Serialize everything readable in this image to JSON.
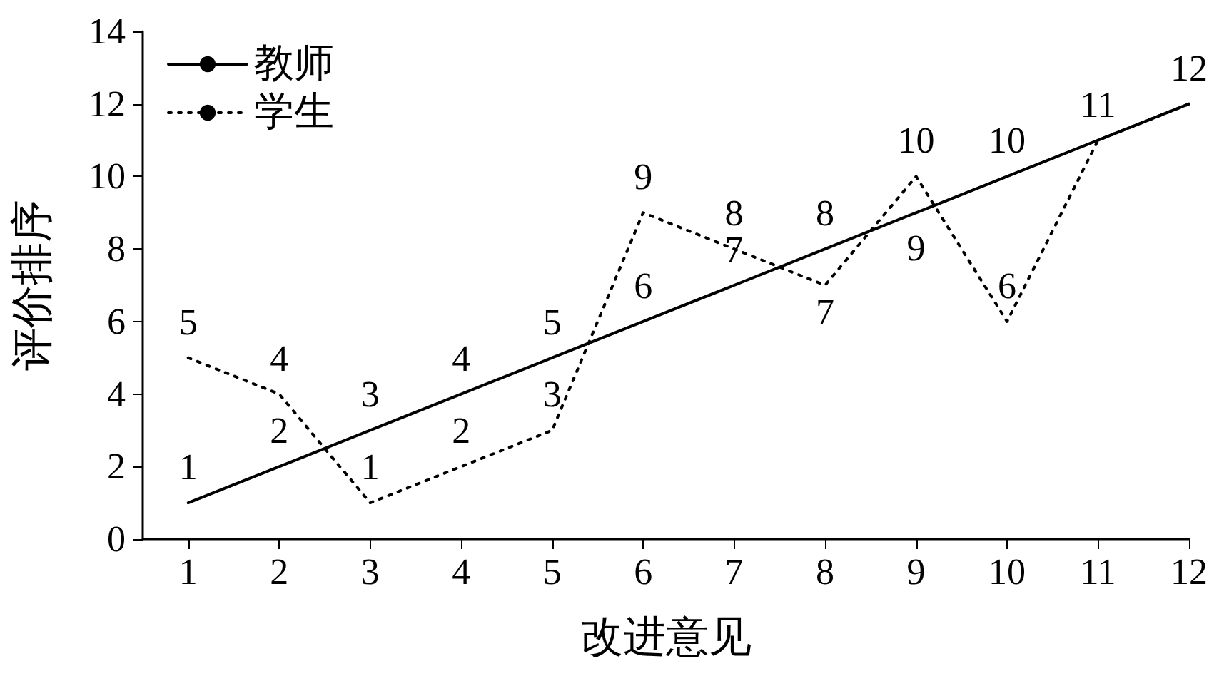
{
  "chart_data": {
    "type": "line",
    "xlabel": "改进意见",
    "ylabel": "评价排序",
    "x": [
      1,
      2,
      3,
      4,
      5,
      6,
      7,
      8,
      9,
      10,
      11,
      12
    ],
    "series": [
      {
        "name": "教师",
        "color": "#000000",
        "line_style": "solid",
        "values": [
          1,
          2,
          3,
          4,
          5,
          6,
          7,
          8,
          9,
          10,
          11,
          12
        ],
        "value_labels": [
          "1",
          "2",
          "3",
          "4",
          "5",
          "6",
          "7",
          "8",
          "9",
          "10",
          "11",
          "12"
        ]
      },
      {
        "name": "学生",
        "color": "#000000",
        "line_style": "dotted",
        "values": [
          5,
          4,
          1,
          2,
          3,
          9,
          8,
          7,
          10,
          6,
          11,
          12
        ],
        "value_labels": [
          "5",
          "4",
          "1",
          "2",
          "3",
          "9",
          "8",
          "7",
          "10",
          "6",
          null,
          null
        ]
      }
    ],
    "xlim": [
      0.5,
      12
    ],
    "xticks": [
      1,
      2,
      3,
      4,
      5,
      6,
      7,
      8,
      9,
      10,
      11,
      12
    ],
    "ylim": [
      0,
      14
    ],
    "yticks": [
      0,
      2,
      4,
      6,
      8,
      10,
      12,
      14
    ],
    "grid": false,
    "legend": "top left",
    "marker": "none"
  }
}
